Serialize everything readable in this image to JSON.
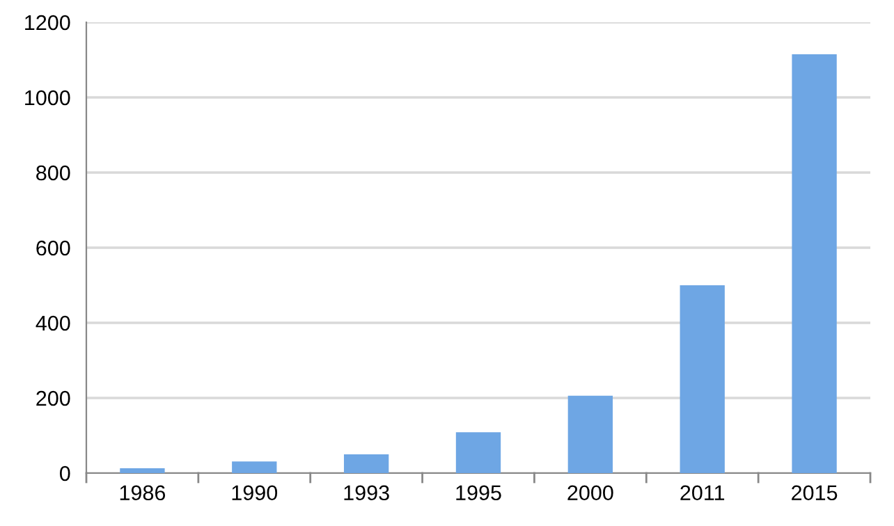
{
  "chart_data": {
    "type": "bar",
    "categories": [
      "1986",
      "1990",
      "1993",
      "1995",
      "2000",
      "2011",
      "2015"
    ],
    "values": [
      13,
      31,
      50,
      109,
      206,
      500,
      1115
    ],
    "color": "#6ea6e4",
    "ylim": [
      0,
      1200
    ],
    "yticks": [
      0,
      200,
      400,
      600,
      800,
      1000,
      1200
    ],
    "grid": "y",
    "legend": false
  }
}
